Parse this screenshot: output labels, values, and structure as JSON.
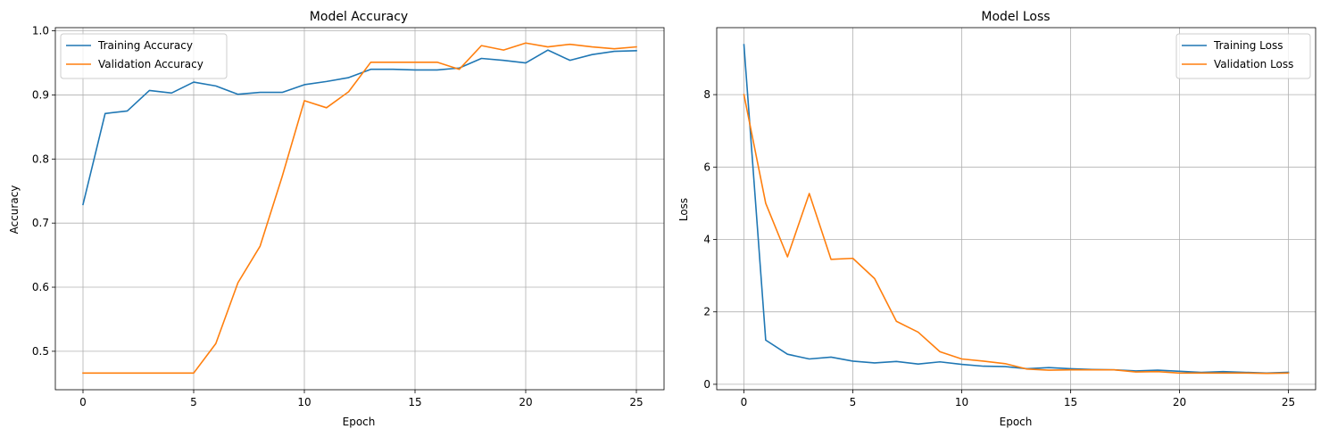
{
  "chart_data": [
    {
      "type": "line",
      "title": "Model Accuracy",
      "xlabel": "Epoch",
      "ylabel": "Accuracy",
      "xlim": [
        -1.25,
        26.25
      ],
      "ylim": [
        0.44,
        1.005
      ],
      "xticks": [
        0,
        5,
        10,
        15,
        20,
        25
      ],
      "yticks": [
        0.5,
        0.6,
        0.7,
        0.8,
        0.9,
        1.0
      ],
      "ytick_labels": [
        "0.5",
        "0.6",
        "0.7",
        "0.8",
        "0.9",
        "1.0"
      ],
      "grid": true,
      "legend_position": "upper-left",
      "x": [
        0,
        1,
        2,
        3,
        4,
        5,
        6,
        7,
        8,
        9,
        10,
        11,
        12,
        13,
        14,
        15,
        16,
        17,
        18,
        19,
        20,
        21,
        22,
        23,
        24,
        25
      ],
      "series": [
        {
          "name": "Training Accuracy",
          "color": "#1f77b4",
          "values": [
            0.729,
            0.871,
            0.875,
            0.907,
            0.903,
            0.92,
            0.914,
            0.901,
            0.904,
            0.904,
            0.916,
            0.921,
            0.927,
            0.94,
            0.94,
            0.939,
            0.939,
            0.942,
            0.957,
            0.954,
            0.95,
            0.97,
            0.954,
            0.963,
            0.968,
            0.969
          ]
        },
        {
          "name": "Validation Accuracy",
          "color": "#ff7f0e",
          "values": [
            0.466,
            0.466,
            0.466,
            0.466,
            0.466,
            0.466,
            0.512,
            0.607,
            0.664,
            0.773,
            0.891,
            0.88,
            0.905,
            0.951,
            0.951,
            0.951,
            0.951,
            0.94,
            0.977,
            0.97,
            0.981,
            0.975,
            0.979,
            0.975,
            0.972,
            0.975
          ]
        }
      ]
    },
    {
      "type": "line",
      "title": "Model Loss",
      "xlabel": "Epoch",
      "ylabel": "Loss",
      "xlim": [
        -1.25,
        26.25
      ],
      "ylim": [
        -0.15,
        9.85
      ],
      "xticks": [
        0,
        5,
        10,
        15,
        20,
        25
      ],
      "yticks": [
        0,
        2,
        4,
        6,
        8
      ],
      "ytick_labels": [
        "0",
        "2",
        "4",
        "6",
        "8"
      ],
      "grid": true,
      "legend_position": "upper-right",
      "x": [
        0,
        1,
        2,
        3,
        4,
        5,
        6,
        7,
        8,
        9,
        10,
        11,
        12,
        13,
        14,
        15,
        16,
        17,
        18,
        19,
        20,
        21,
        22,
        23,
        24,
        25
      ],
      "series": [
        {
          "name": "Training Loss",
          "color": "#1f77b4",
          "values": [
            9.38,
            1.22,
            0.83,
            0.7,
            0.75,
            0.64,
            0.59,
            0.63,
            0.56,
            0.62,
            0.55,
            0.5,
            0.49,
            0.43,
            0.46,
            0.43,
            0.41,
            0.4,
            0.37,
            0.39,
            0.36,
            0.33,
            0.35,
            0.33,
            0.31,
            0.33
          ]
        },
        {
          "name": "Validation Loss",
          "color": "#ff7f0e",
          "values": [
            8.0,
            5.0,
            3.52,
            5.27,
            3.45,
            3.48,
            2.92,
            1.74,
            1.44,
            0.9,
            0.7,
            0.64,
            0.57,
            0.42,
            0.39,
            0.4,
            0.4,
            0.4,
            0.34,
            0.35,
            0.31,
            0.31,
            0.31,
            0.31,
            0.3,
            0.31
          ]
        }
      ]
    }
  ]
}
